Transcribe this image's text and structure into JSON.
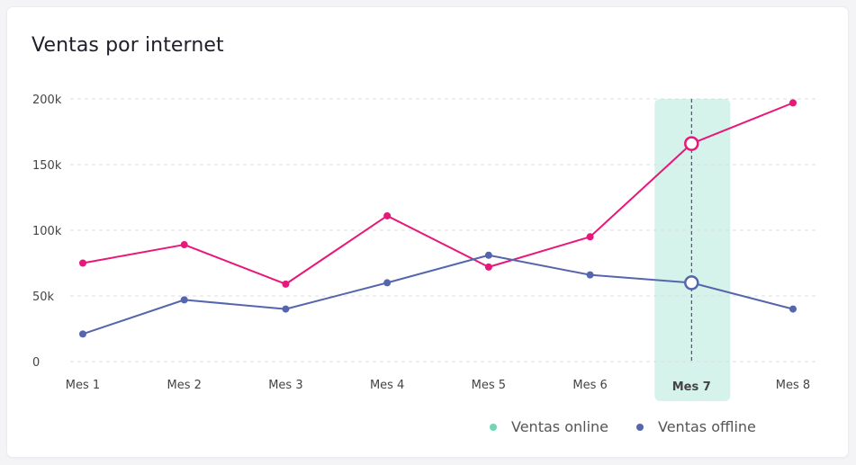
{
  "chart_data": {
    "type": "line",
    "title": "Ventas por internet",
    "categories": [
      "Mes 1",
      "Mes 2",
      "Mes 3",
      "Mes 4",
      "Mes 5",
      "Mes 6",
      "Mes 7",
      "Mes 8"
    ],
    "highlighted_category": "Mes 7",
    "y_ticks": [
      "0",
      "50k",
      "100k",
      "150k",
      "200k"
    ],
    "ylim": [
      0,
      200000
    ],
    "grid": "horizontal dashed",
    "legend_position": "bottom-right",
    "series": [
      {
        "name": "Ventas online",
        "color": "#e8177a",
        "legend_color": "#6ed8b6",
        "values": [
          75000,
          89000,
          59000,
          111000,
          72000,
          95000,
          166000,
          197000
        ]
      },
      {
        "name": "Ventas offline",
        "color": "#5566ad",
        "legend_color": "#5566ad",
        "values": [
          21000,
          47000,
          40000,
          60000,
          81000,
          66000,
          60000,
          40000
        ]
      }
    ],
    "highlight_color": "#d5f3ea"
  }
}
